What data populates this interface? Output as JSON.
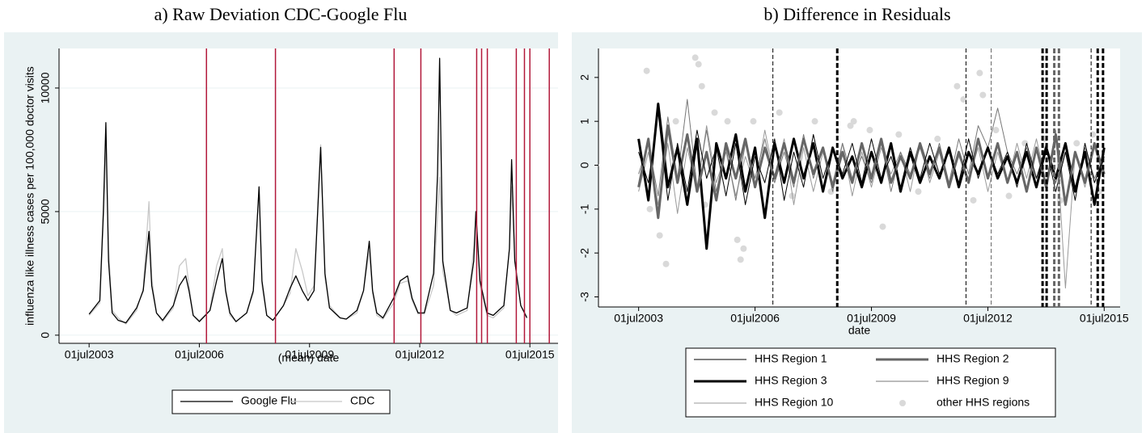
{
  "chart_data": [
    {
      "type": "line",
      "title": "a) Raw Deviation CDC-Google Flu",
      "x_label": "(mean) date",
      "y_label": "influenza like illness cases per 100,000 doctor visits",
      "x": [
        "2003-07-01",
        "2003-10-15",
        "2003-11-20",
        "2003-12-15",
        "2004-01-10",
        "2004-02-15",
        "2004-04-15",
        "2004-07-01",
        "2004-10-15",
        "2004-12-20",
        "2005-02-15",
        "2005-03-15",
        "2005-05-01",
        "2005-07-01",
        "2005-10-15",
        "2005-12-15",
        "2006-02-15",
        "2006-03-20",
        "2006-05-01",
        "2006-07-01",
        "2006-10-15",
        "2006-12-20",
        "2007-02-15",
        "2007-03-20",
        "2007-05-01",
        "2007-07-01",
        "2007-10-15",
        "2007-12-20",
        "2008-02-15",
        "2008-03-15",
        "2008-05-01",
        "2008-07-01",
        "2008-10-15",
        "2008-12-20",
        "2009-02-15",
        "2009-04-20",
        "2009-06-15",
        "2009-08-15",
        "2009-10-20",
        "2009-12-01",
        "2010-01-15",
        "2010-05-01",
        "2010-07-01",
        "2010-10-15",
        "2010-12-20",
        "2011-02-15",
        "2011-03-20",
        "2011-05-01",
        "2011-07-01",
        "2011-10-15",
        "2011-12-20",
        "2012-03-01",
        "2012-04-15",
        "2012-06-15",
        "2012-08-15",
        "2012-11-15",
        "2012-12-25",
        "2013-01-15",
        "2013-02-15",
        "2013-05-01",
        "2013-07-01",
        "2013-10-15",
        "2013-12-20",
        "2014-01-10",
        "2014-02-20",
        "2014-05-01",
        "2014-07-01",
        "2014-10-15",
        "2014-12-10",
        "2014-12-31",
        "2015-02-01",
        "2015-04-01",
        "2015-06-01"
      ],
      "series": [
        {
          "name": "Google Flu",
          "color": "#000000",
          "values": [
            850,
            1400,
            5000,
            8600,
            3000,
            900,
            600,
            500,
            1100,
            1800,
            4200,
            2000,
            900,
            600,
            1200,
            2000,
            2400,
            1800,
            800,
            550,
            1000,
            2200,
            3100,
            1800,
            900,
            550,
            900,
            1800,
            6000,
            2200,
            800,
            600,
            1200,
            1900,
            2400,
            1800,
            1400,
            1800,
            7600,
            2500,
            1100,
            700,
            650,
            1000,
            1800,
            3800,
            1800,
            900,
            700,
            1500,
            2200,
            2400,
            1500,
            900,
            900,
            2500,
            6500,
            11200,
            3000,
            1000,
            900,
            1100,
            3000,
            5000,
            2200,
            900,
            800,
            1200,
            3500,
            7100,
            3000,
            1200,
            700
          ]
        },
        {
          "name": "CDC",
          "color": "#c8c8c8",
          "values": [
            800,
            1300,
            4500,
            7600,
            3500,
            1000,
            700,
            450,
            1000,
            1900,
            5400,
            2300,
            900,
            550,
            1100,
            2800,
            3100,
            2000,
            800,
            600,
            1000,
            2800,
            3500,
            1700,
            800,
            550,
            900,
            1700,
            6000,
            2000,
            800,
            600,
            1200,
            1700,
            3500,
            2600,
            1600,
            2000,
            7700,
            2300,
            1200,
            700,
            650,
            900,
            1800,
            3400,
            1700,
            800,
            650,
            1300,
            2100,
            2200,
            1400,
            850,
            850,
            2000,
            4800,
            6400,
            2600,
            1000,
            800,
            1000,
            3500,
            4800,
            2000,
            800,
            700,
            1100,
            3500,
            6000,
            3000,
            1200,
            750
          ]
        }
      ],
      "xlim": [
        "2002-09-05",
        "2016-04-06"
      ],
      "xticks": [
        {
          "value": "2003-07-01",
          "label": "01jul2003"
        },
        {
          "value": "2006-07-01",
          "label": "01jul2006"
        },
        {
          "value": "2009-07-01",
          "label": "01jul2009"
        },
        {
          "value": "2012-07-01",
          "label": "01jul2012"
        },
        {
          "value": "2015-07-01",
          "label": "01jul2015"
        }
      ],
      "ylim": [
        -330,
        11600
      ],
      "yticks": [
        0,
        5000,
        10000
      ],
      "grid": true,
      "legend": "bottom",
      "event_line_color": "#b2183a",
      "event_lines": [
        "2006-09-10",
        "2008-07-27",
        "2011-10-20",
        "2012-07-12",
        "2014-01-18",
        "2014-03-08",
        "2014-05-04",
        "2015-02-16",
        "2015-05-08",
        "2015-07-01",
        "2016-01-10"
      ]
    },
    {
      "type": "line",
      "title": "b) Difference in Residuals",
      "x_label": "date",
      "x": [
        "2003-07-01",
        "2003-10-01",
        "2004-01-01",
        "2004-04-01",
        "2004-07-01",
        "2004-10-01",
        "2005-01-01",
        "2005-04-01",
        "2005-07-01",
        "2005-10-01",
        "2006-01-01",
        "2006-04-01",
        "2006-07-01",
        "2006-10-01",
        "2007-01-01",
        "2007-04-01",
        "2007-07-01",
        "2007-10-01",
        "2008-01-01",
        "2008-04-01",
        "2008-07-01",
        "2008-10-01",
        "2009-01-01",
        "2009-04-01",
        "2009-07-01",
        "2009-10-01",
        "2010-01-01",
        "2010-04-01",
        "2010-07-01",
        "2010-10-01",
        "2011-01-01",
        "2011-04-01",
        "2011-07-01",
        "2011-10-01",
        "2012-01-01",
        "2012-04-01",
        "2012-07-01",
        "2012-10-01",
        "2013-01-01",
        "2013-04-01",
        "2013-07-01",
        "2013-10-01",
        "2014-01-01",
        "2014-04-01",
        "2014-07-01",
        "2014-10-01",
        "2015-01-01",
        "2015-04-01",
        "2015-07-01"
      ],
      "series": [
        {
          "name": "HHS Region 1",
          "color": "#000000",
          "weight": "thin",
          "values": [
            0.3,
            -0.4,
            1.2,
            -0.8,
            0.5,
            -0.6,
            0.8,
            -0.3,
            0.4,
            -0.7,
            0.5,
            -0.9,
            0.2,
            -0.4,
            0.6,
            -0.8,
            0.3,
            -0.5,
            0.7,
            -0.3,
            0.4,
            -0.2,
            0.5,
            -0.4,
            0.6,
            -0.3,
            0.2,
            -0.5,
            0.4,
            -0.3,
            0.5,
            -0.2,
            0.3,
            -0.4,
            0.6,
            -0.3,
            0.4,
            -0.2,
            0.3,
            -0.5,
            0.5,
            -0.3,
            0.4,
            -0.6,
            0.3,
            -0.8,
            0.5,
            -0.4,
            0.2
          ]
        },
        {
          "name": "HHS Region 2",
          "color": "#666666",
          "weight": "thick",
          "values": [
            -0.5,
            0.6,
            -1.2,
            0.9,
            -0.4,
            0.7,
            -0.6,
            0.3,
            -0.8,
            0.5,
            -0.3,
            0.6,
            -0.5,
            0.4,
            -0.3,
            0.5,
            -0.4,
            0.6,
            -0.2,
            0.4,
            -0.5,
            0.3,
            -0.4,
            0.5,
            -0.3,
            0.6,
            -0.4,
            0.2,
            -0.3,
            0.5,
            -0.2,
            0.4,
            -0.5,
            0.3,
            -0.4,
            0.6,
            -0.3,
            0.5,
            -0.4,
            0.3,
            -0.6,
            0.4,
            -0.5,
            0.7,
            -0.9,
            0.3,
            -0.4,
            0.5,
            -0.2
          ]
        },
        {
          "name": "HHS Region 3",
          "color": "#000000",
          "weight": "thick",
          "values": [
            0.6,
            -0.8,
            1.4,
            -0.5,
            0.4,
            -0.9,
            0.6,
            -1.9,
            0.5,
            -0.3,
            0.7,
            -0.6,
            0.4,
            -1.2,
            0.5,
            -0.4,
            0.6,
            -0.3,
            0.5,
            -0.6,
            0.4,
            -0.3,
            0.2,
            -0.5,
            0.3,
            -0.4,
            0.5,
            -0.6,
            0.3,
            -0.4,
            0.2,
            -0.3,
            0.4,
            -0.5,
            0.3,
            -0.2,
            0.4,
            -0.3,
            0.2,
            -0.4,
            0.3,
            -0.5,
            0.4,
            -0.3,
            0.5,
            -0.6,
            0.3,
            -0.9,
            0.4
          ]
        },
        {
          "name": "HHS Region 9",
          "color": "#777777",
          "weight": "thin",
          "values": [
            -0.2,
            0.5,
            -0.7,
            1.1,
            -0.3,
            1.5,
            -0.5,
            0.8,
            -0.6,
            0.4,
            -0.8,
            0.5,
            -0.3,
            0.6,
            -0.4,
            0.3,
            -0.5,
            0.7,
            -0.3,
            0.4,
            -0.6,
            0.5,
            -0.3,
            0.2,
            -0.4,
            0.5,
            -0.6,
            0.3,
            -0.2,
            0.4,
            -0.3,
            0.5,
            -0.4,
            0.6,
            -0.2,
            0.9,
            0.4,
            1.3,
            0.3,
            -0.2,
            0.4,
            -0.3,
            0.5,
            -0.4,
            0.3,
            -0.5,
            0.4,
            -0.3,
            0.2
          ]
        },
        {
          "name": "HHS Region 10",
          "color": "#999999",
          "weight": "thin",
          "values": [
            -0.6,
            0.3,
            -0.9,
            0.5,
            -1.1,
            0.4,
            -0.6,
            0.9,
            -0.4,
            0.3,
            -0.7,
            0.2,
            -0.5,
            0.8,
            -0.3,
            0.6,
            -0.9,
            0.4,
            -0.6,
            0.3,
            -0.4,
            0.5,
            -0.7,
            0.3,
            -0.5,
            0.4,
            -0.2,
            0.3,
            -0.6,
            0.5,
            -0.4,
            0.3,
            -0.5,
            0.2,
            -0.3,
            0.4,
            -0.6,
            0.3,
            -0.4,
            0.5,
            -0.3,
            0.6,
            -0.4,
            0.8,
            -2.8,
            0.3,
            -0.5,
            0.4,
            -0.3
          ]
        },
        {
          "name": "other HHS regions",
          "type": "scatter",
          "color": "#d9d9d9",
          "x": [
            "2003-09-15",
            "2003-10-15",
            "2004-01-15",
            "2004-03-15",
            "2004-06-15",
            "2004-12-15",
            "2005-01-15",
            "2005-02-15",
            "2005-03-15",
            "2005-06-15",
            "2005-10-15",
            "2006-01-15",
            "2006-02-15",
            "2006-03-15",
            "2006-06-15",
            "2007-02-15",
            "2007-06-15",
            "2008-01-15",
            "2008-06-15",
            "2008-12-15",
            "2009-01-15",
            "2009-06-15",
            "2009-10-15",
            "2010-03-15",
            "2010-09-15",
            "2011-03-15",
            "2011-09-15",
            "2011-11-15",
            "2012-02-15",
            "2012-04-15",
            "2012-05-15",
            "2012-09-15",
            "2013-01-15",
            "2013-06-15",
            "2013-12-15",
            "2014-05-15",
            "2014-10-15",
            "2015-03-15",
            "2015-05-15"
          ],
          "values": [
            2.15,
            -1.0,
            -1.6,
            -2.25,
            1.0,
            2.45,
            2.3,
            1.8,
            -0.9,
            1.2,
            1.0,
            -1.7,
            -2.15,
            -1.9,
            1.0,
            1.2,
            -0.7,
            1.0,
            -0.6,
            0.9,
            1.0,
            0.8,
            -1.4,
            0.7,
            -0.6,
            0.6,
            1.8,
            1.5,
            -0.8,
            2.1,
            1.6,
            0.8,
            -0.7,
            0.5,
            0.6,
            -0.8,
            0.5,
            0.7,
            -0.6
          ]
        }
      ],
      "xlim": [
        "2002-06-18",
        "2015-11-28"
      ],
      "xticks": [
        {
          "value": "2003-07-01",
          "label": "01jul2003"
        },
        {
          "value": "2006-07-01",
          "label": "01jul2006"
        },
        {
          "value": "2009-07-01",
          "label": "01jul2009"
        },
        {
          "value": "2012-07-01",
          "label": "01jul2012"
        },
        {
          "value": "2015-07-01",
          "label": "01jul2015"
        }
      ],
      "ylim": [
        -3.23,
        2.66
      ],
      "yticks": [
        -3,
        -2,
        -1,
        0,
        1,
        2
      ],
      "grid": false,
      "legend": "bottom",
      "reference_line": 0,
      "event_lines": [
        {
          "x": "2006-12-16",
          "weight": "thin",
          "color": "#000000"
        },
        {
          "x": "2008-08-13",
          "weight": "thick",
          "color": "#000000"
        },
        {
          "x": "2011-12-08",
          "weight": "thin",
          "color": "#000000"
        },
        {
          "x": "2012-08-01",
          "weight": "thin",
          "color": "#666666"
        },
        {
          "x": "2013-11-28",
          "weight": "thick",
          "color": "#000000"
        },
        {
          "x": "2014-01-05",
          "weight": "thick",
          "color": "#000000"
        },
        {
          "x": "2014-03-18",
          "weight": "thick",
          "color": "#666666"
        },
        {
          "x": "2014-05-01",
          "weight": "thick",
          "color": "#666666"
        },
        {
          "x": "2015-02-28",
          "weight": "thin",
          "color": "#000000"
        },
        {
          "x": "2015-05-01",
          "weight": "thick",
          "color": "#000000"
        },
        {
          "x": "2015-06-20",
          "weight": "thick",
          "color": "#000000"
        }
      ]
    }
  ]
}
